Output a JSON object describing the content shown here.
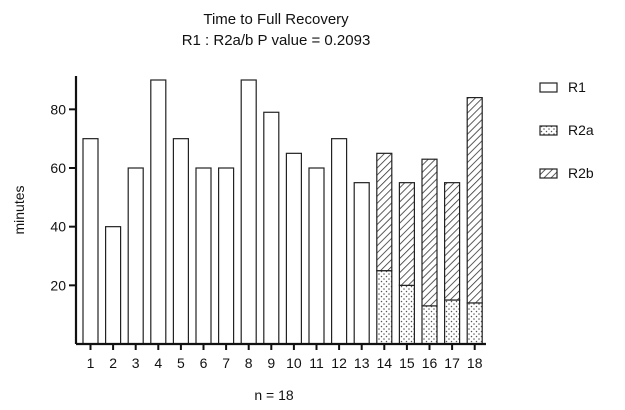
{
  "chart_data": {
    "type": "bar",
    "stacked": true,
    "title": "Time to Full Recovery",
    "subtitle": "R1 : R2a/b  P value = 0.2093",
    "ylabel": "minutes",
    "xlabel": "n = 18",
    "ylim": [
      0,
      90
    ],
    "yticks": [
      20,
      40,
      60,
      80
    ],
    "categories": [
      "1",
      "2",
      "3",
      "4",
      "5",
      "6",
      "7",
      "8",
      "9",
      "10",
      "11",
      "12",
      "13",
      "14",
      "15",
      "16",
      "17",
      "18"
    ],
    "series": [
      {
        "name": "R1",
        "pattern": "blank",
        "values": [
          70,
          40,
          60,
          90,
          70,
          60,
          60,
          90,
          79,
          65,
          60,
          70,
          55,
          null,
          null,
          null,
          null,
          null
        ]
      },
      {
        "name": "R2a",
        "pattern": "dotted",
        "values": [
          null,
          null,
          null,
          null,
          null,
          null,
          null,
          null,
          null,
          null,
          null,
          null,
          null,
          25,
          20,
          13,
          15,
          14
        ]
      },
      {
        "name": "R2b",
        "pattern": "hatched",
        "values": [
          null,
          null,
          null,
          null,
          null,
          null,
          null,
          null,
          null,
          null,
          null,
          null,
          null,
          40,
          35,
          50,
          40,
          70
        ]
      }
    ],
    "legend_position": "right",
    "grid": false
  }
}
